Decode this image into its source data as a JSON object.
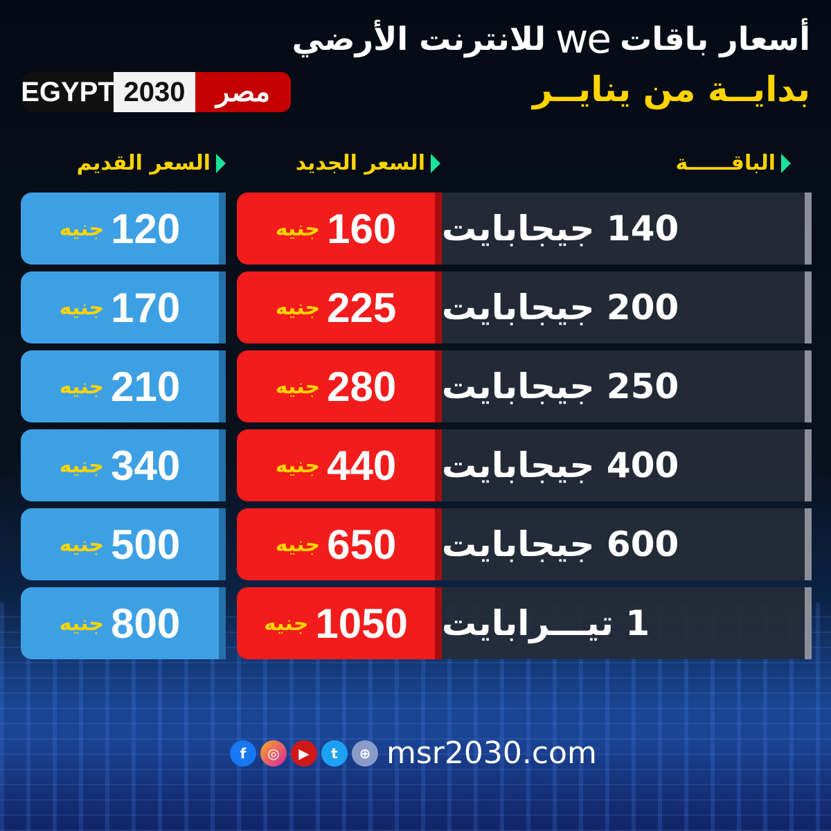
{
  "header": {
    "title_part1": "أسعار باقات",
    "brand": "we",
    "title_part2": "للانترنت الأرضي",
    "subtitle": "بدايــة من ينايــر"
  },
  "logo": {
    "part1": "EGYPT",
    "part2": "2030",
    "part3": "مصر"
  },
  "columns": {
    "package": "الباقــــــة",
    "new_price": "السعر الجديد",
    "old_price": "السعر القديم"
  },
  "currency": "جنيه",
  "rows": [
    {
      "package": "140 جيجابايت",
      "new_price": "160",
      "old_price": "120"
    },
    {
      "package": "200 جيجابايت",
      "new_price": "225",
      "old_price": "170"
    },
    {
      "package": "250 جيجابايت",
      "new_price": "280",
      "old_price": "210"
    },
    {
      "package": "400 جيجابايت",
      "new_price": "440",
      "old_price": "340"
    },
    {
      "package": "600 جيجابايت",
      "new_price": "650",
      "old_price": "500"
    },
    {
      "package": "1 تيـــرابايت",
      "new_price": "1050",
      "old_price": "800"
    }
  ],
  "footer": {
    "website": "msr2030.com",
    "icons": [
      "facebook-icon",
      "instagram-icon",
      "youtube-icon",
      "twitter-icon",
      "globe-icon"
    ]
  },
  "colors": {
    "new_price": "#f21c1c",
    "old_price": "#3ea0e4",
    "accent": "#ffd400",
    "marker": "#19e39a"
  }
}
